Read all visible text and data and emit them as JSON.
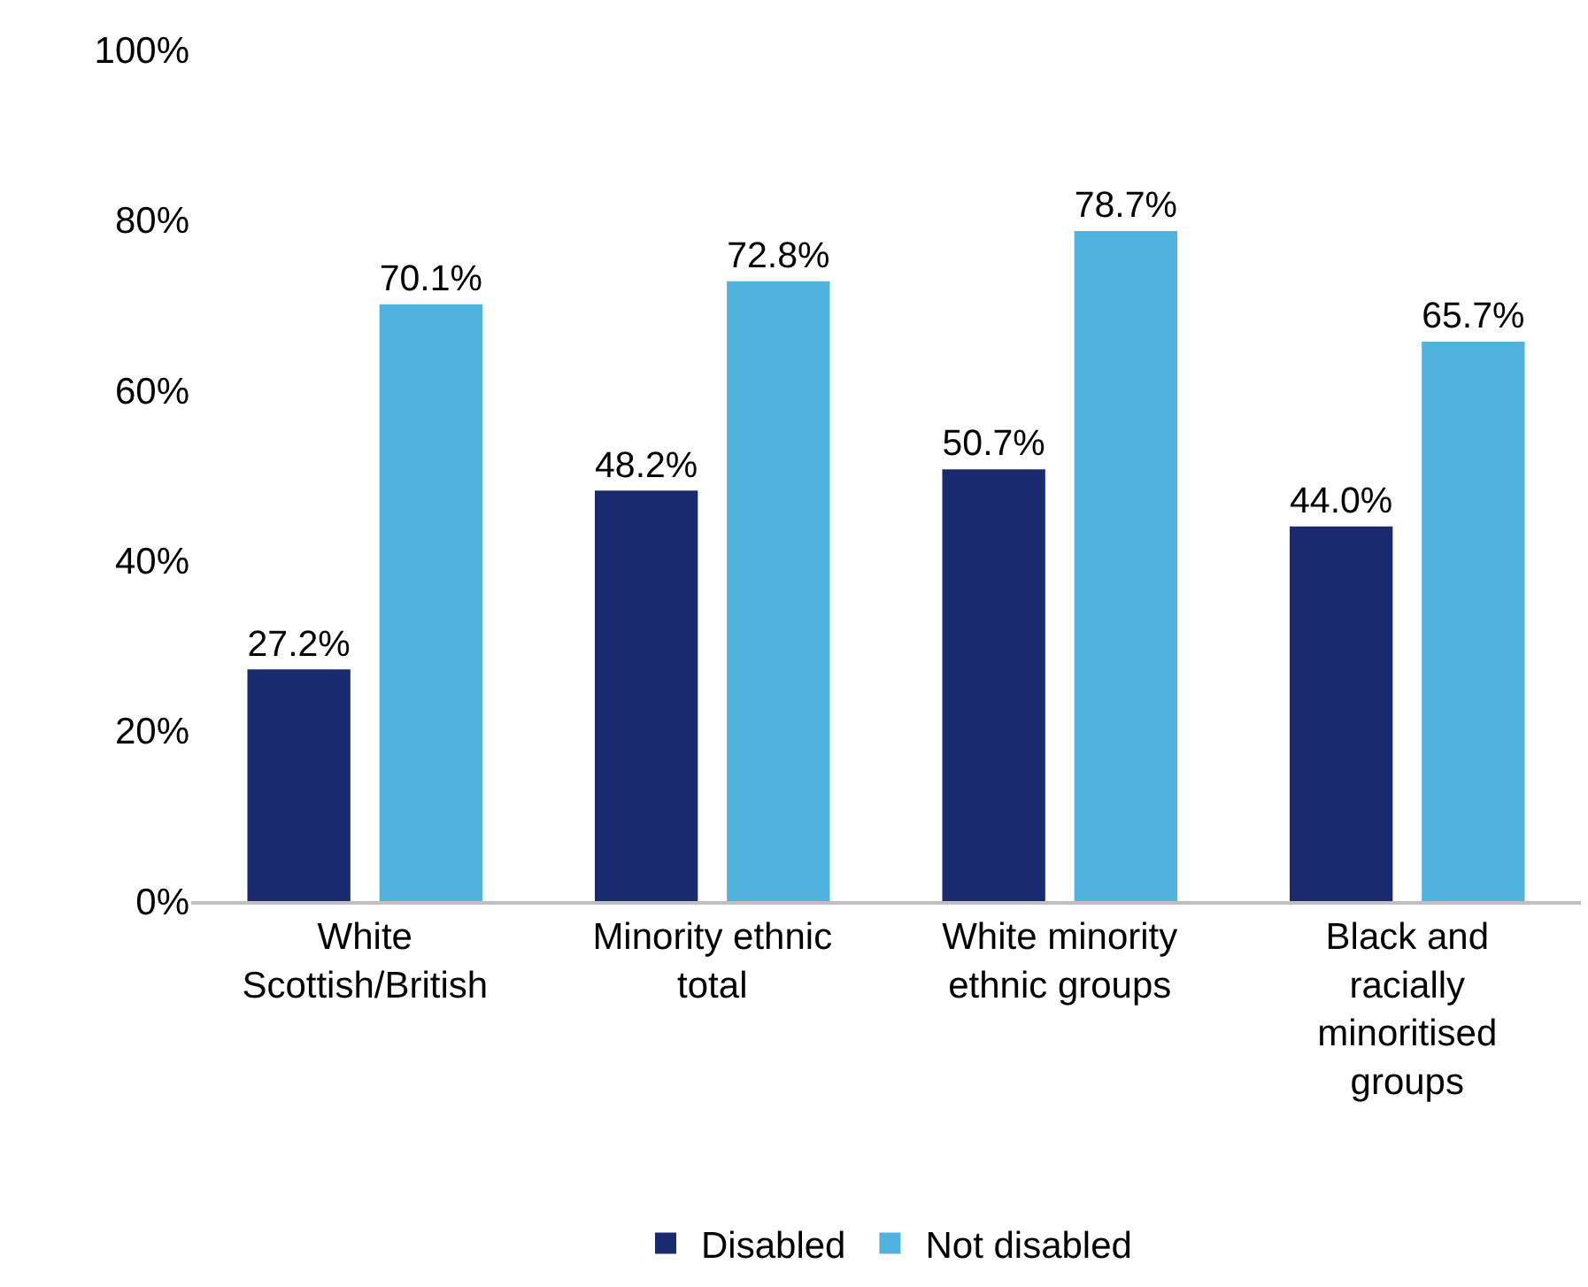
{
  "chart_data": {
    "type": "bar",
    "categories": [
      "White Scottish/British",
      "Minority ethnic total",
      "White minority ethnic groups",
      "Black and racially minoritised groups"
    ],
    "series": [
      {
        "name": "Disabled",
        "color": "#1a2a6e",
        "values": [
          27.2,
          48.2,
          50.7,
          44.0
        ],
        "value_labels": [
          "27.2%",
          "48.2%",
          "50.7%",
          "44.0%"
        ]
      },
      {
        "name": "Not disabled",
        "color": "#50b3dd",
        "values": [
          70.1,
          72.8,
          78.7,
          65.7
        ],
        "value_labels": [
          "70.1%",
          "72.8%",
          "78.7%",
          "65.7%"
        ]
      }
    ],
    "ylim": [
      0,
      100
    ],
    "yticks": [
      {
        "value": 0,
        "label": "0%"
      },
      {
        "value": 20,
        "label": "20%"
      },
      {
        "value": 40,
        "label": "40%"
      },
      {
        "value": 60,
        "label": "60%"
      },
      {
        "value": 80,
        "label": "80%"
      },
      {
        "value": 100,
        "label": "100%"
      }
    ],
    "grid": false,
    "legend": "bottom"
  }
}
